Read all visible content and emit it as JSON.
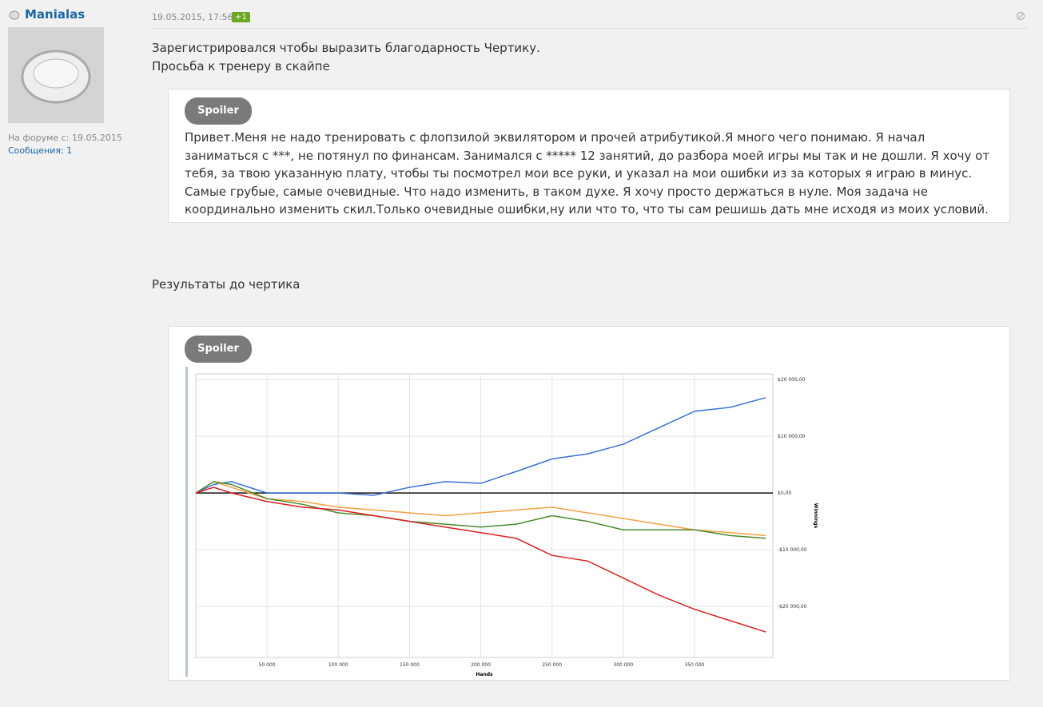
{
  "user": {
    "name": "Manialas",
    "joined": "На форуме с: 19.05.2015",
    "messages": "Сообщения: 1"
  },
  "post": {
    "date": "19.05.2015, 17:56",
    "likes": "+1",
    "lines": [
      "Зарегистрировался чтобы выразить благодарность Чертику.",
      "Просьба к тренеру в скайпе"
    ],
    "spoiler1": {
      "button": "Spoiler",
      "text": "Привет.Меня не надо тренировать с флопзилой эквилятором и прочей атрибутикой.Я много чего понимаю. Я начал заниматься с ***, не потянул по финансам. Занимался с ***** 12 занятий, до разбора моей игры мы так и не дошли. Я хочу от тебя, за твою указанную плату, чтобы ты посмотрел мои все руки, и указал на мои ошибки из за которых я играю в минус. Самые грубые, самые очевидные. Что надо изменить, в таком духе. Я хочу просто держаться в нуле. Моя задача не координально изменить скил.Только очевидные ошибки,ну или что то, что ты сам решишь дать мне исходя из моих условий."
    },
    "results": "Результаты до чертика",
    "spoiler2": {
      "button": "Spoiler"
    }
  },
  "chart_data": {
    "type": "line",
    "x_label": "Hands",
    "y_label": "Winnings",
    "grid": true,
    "x": [
      0,
      12500,
      25000,
      50000,
      75000,
      100000,
      125000,
      150000,
      175000,
      200000,
      225000,
      250000,
      275000,
      300000,
      325000,
      350000,
      375000,
      400000
    ],
    "series": [
      {
        "color": "#3a6fd8",
        "values": [
          0,
          1500,
          2000,
          0,
          0,
          0,
          -400,
          1000,
          2000,
          1700,
          3800,
          6000,
          6900,
          8600,
          11500,
          14400,
          15100,
          16800
        ]
      },
      {
        "color": "#f5a040",
        "values": [
          0,
          2000,
          1000,
          -1000,
          -1500,
          -2500,
          -3000,
          -3500,
          -4000,
          -3500,
          -3000,
          -2500,
          -3500,
          -4500,
          -5500,
          -6500,
          -7000,
          -7500
        ]
      },
      {
        "color": "#4a8a2a",
        "values": [
          0,
          2000,
          1500,
          -1000,
          -2000,
          -3500,
          -4000,
          -5000,
          -5500,
          -6000,
          -5500,
          -4000,
          -5000,
          -6500,
          -6500,
          -6500,
          -7500,
          -8000
        ]
      },
      {
        "color": "#dd2020",
        "values": [
          0,
          1000,
          0,
          -1500,
          -2500,
          -3000,
          -4000,
          -5000,
          -6000,
          -7000,
          -8000,
          -11000,
          -12000,
          -15000,
          -18000,
          -20500,
          -22500,
          -24500
        ]
      }
    ],
    "xlim": [
      0,
      405000
    ],
    "ylim": [
      -29000,
      21000
    ],
    "xticks": [
      {
        "value": 50000,
        "label": "50 000"
      },
      {
        "value": 100000,
        "label": "100 000"
      },
      {
        "value": 150000,
        "label": "150 000"
      },
      {
        "value": 200000,
        "label": "200 000"
      },
      {
        "value": 250000,
        "label": "250 000"
      },
      {
        "value": 300000,
        "label": "300 000"
      },
      {
        "value": 350000,
        "label": "350 000"
      }
    ],
    "yticks": [
      {
        "value": 20000,
        "label": "$20 000,00"
      },
      {
        "value": 10000,
        "label": "$10 000,00"
      },
      {
        "value": 0,
        "label": "$0,00"
      },
      {
        "value": -10000,
        "label": "-$10 000,00"
      },
      {
        "value": -20000,
        "label": "-$20 000,00"
      }
    ]
  }
}
